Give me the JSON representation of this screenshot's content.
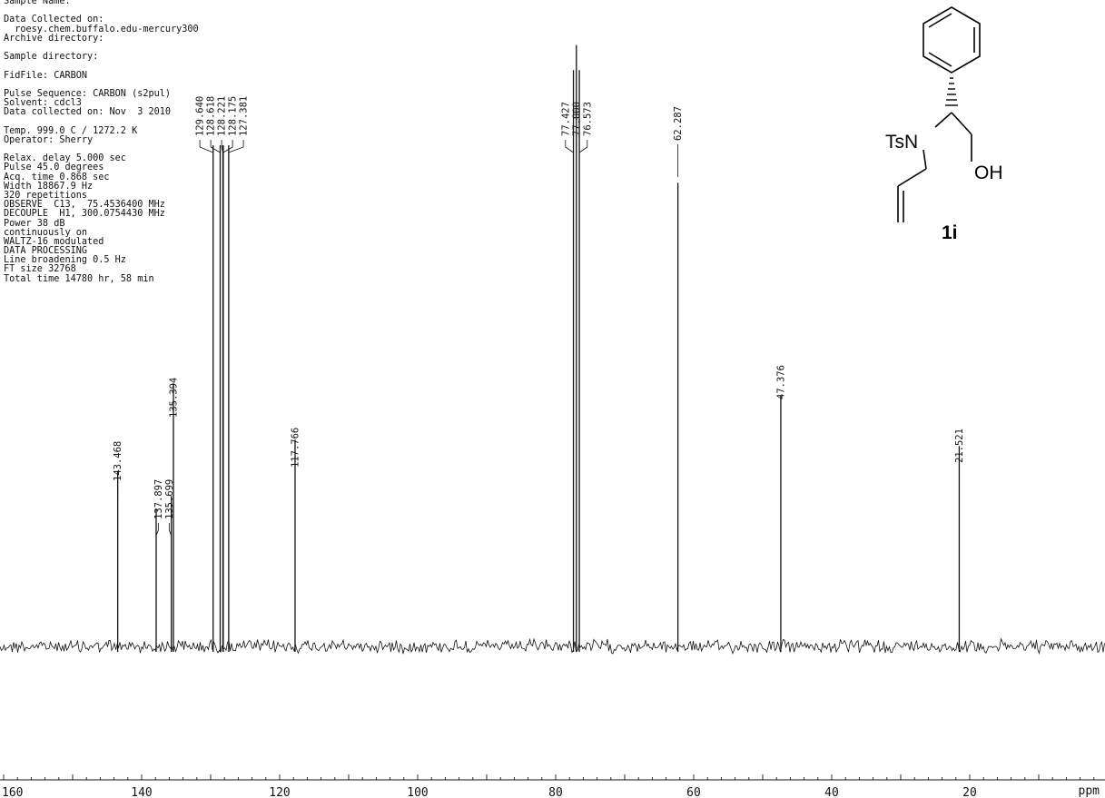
{
  "params": [
    "Sample Name:",
    "",
    "Data Collected on:",
    "  roesy.chem.buffalo.edu-mercury300",
    "Archive directory:",
    "",
    "Sample directory:",
    "",
    "FidFile: CARBON",
    "",
    "Pulse Sequence: CARBON (s2pul)",
    "Solvent: cdcl3",
    "Data collected on: Nov  3 2010",
    "",
    "Temp. 999.0 C / 1272.2 K",
    "Operator: Sherry",
    "",
    "Relax. delay 5.000 sec",
    "Pulse 45.0 degrees",
    "Acq. time 0.868 sec",
    "Width 18867.9 Hz",
    "320 repetitions",
    "OBSERVE  C13,  75.4536400 MHz",
    "DECOUPLE  H1, 300.0754430 MHz",
    "Power 38 dB",
    "continuously on",
    "WALTZ-16 modulated",
    "DATA PROCESSING",
    "Line broadening 0.5 Hz",
    "FT size 32768",
    "Total time 14780 hr, 58 min"
  ],
  "structure": {
    "labels": {
      "ts_n": "TsN",
      "oh": "OH",
      "compound_id": "1i"
    }
  },
  "chart_data": {
    "type": "line",
    "title": "",
    "xlabel": "ppm",
    "ylabel": "",
    "x_reversed": true,
    "xlim": [
      160,
      0
    ],
    "x_ticks": [
      140,
      120,
      100,
      80,
      60,
      40,
      20
    ],
    "x_tick_labels": [
      "140",
      "120",
      "100",
      "80",
      "60",
      "40",
      "20"
    ],
    "x_edge_label": "160",
    "peaks": [
      {
        "ppm": 143.468,
        "label": "143.468",
        "height": 0.28
      },
      {
        "ppm": 137.897,
        "label": "137.897",
        "height": 0.22
      },
      {
        "ppm": 135.699,
        "label": "135.699",
        "height": 0.24
      },
      {
        "ppm": 135.394,
        "label": "135.394",
        "height": 0.42
      },
      {
        "ppm": 129.64,
        "label": "129.640",
        "height": 0.8
      },
      {
        "ppm": 128.618,
        "label": "128.618",
        "height": 0.8
      },
      {
        "ppm": 128.221,
        "label": "128.221",
        "height": 0.8
      },
      {
        "ppm": 128.175,
        "label": "128.175",
        "height": 0.8
      },
      {
        "ppm": 127.381,
        "label": "127.381",
        "height": 0.8
      },
      {
        "ppm": 117.766,
        "label": "117.766",
        "height": 0.33
      },
      {
        "ppm": 77.427,
        "label": "77.427",
        "height": 0.92
      },
      {
        "ppm": 77.0,
        "label": "77.000",
        "height": 0.96
      },
      {
        "ppm": 76.573,
        "label": "76.573",
        "height": 0.92
      },
      {
        "ppm": 62.287,
        "label": "62.287",
        "height": 0.74
      },
      {
        "ppm": 47.376,
        "label": "47.376",
        "height": 0.4
      },
      {
        "ppm": 21.521,
        "label": "21.521",
        "height": 0.32
      }
    ]
  }
}
